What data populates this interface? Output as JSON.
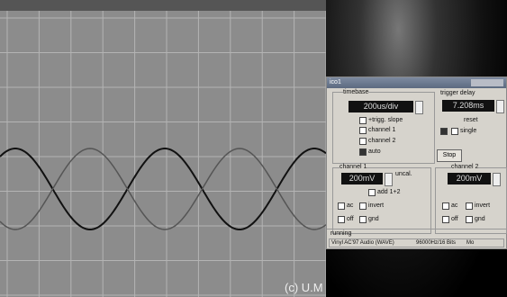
{
  "scope": {
    "copyright": "(c) U.M"
  },
  "window": {
    "title": "ico1",
    "timebase": {
      "label": "timebase",
      "value": "200us/div",
      "options": [
        "+trigg. slope",
        "channel 1",
        "channel 2",
        "auto"
      ]
    },
    "trigger": {
      "label": "trigger delay",
      "value": "7.208ms",
      "reset": "reset",
      "single": "single",
      "button": "Stop"
    },
    "channel1": {
      "label": "channel 1",
      "value": "200mV",
      "uncal": "uncal.",
      "add": "add 1+2",
      "ac": "ac",
      "invert": "invert",
      "off": "off",
      "gnd": "gnd"
    },
    "channel2": {
      "label": "channel 2",
      "value": "200mV",
      "ac": "ac",
      "invert": "invert",
      "off": "off",
      "gnd": "gnd"
    },
    "status": {
      "state": "running",
      "device": "Vinyl AC'97 Audio (WAVE)",
      "format": "96000Hz/16 Bits",
      "mode": "Mo"
    }
  }
}
